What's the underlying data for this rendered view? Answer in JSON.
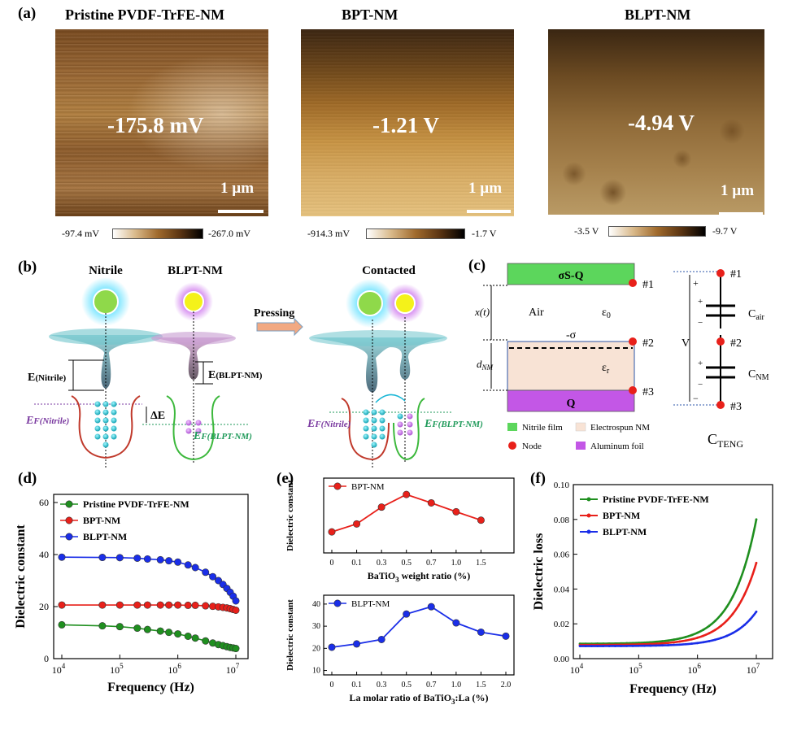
{
  "panel_a": {
    "label": "(a)",
    "images": [
      {
        "title": "Pristine PVDF-TrFE-NM",
        "value": "-175.8 mV",
        "scale": "1 µm",
        "cb_left": "-97.4 mV",
        "cb_right": "-267.0 mV"
      },
      {
        "title": "BPT-NM",
        "value": "-1.21 V",
        "scale": "1 µm",
        "cb_left": "-914.3 mV",
        "cb_right": "-1.7 V"
      },
      {
        "title": "BLPT-NM",
        "value": "-4.94 V",
        "scale": "1 µm",
        "cb_left": "-3.5 V",
        "cb_right": "-9.7 V"
      }
    ]
  },
  "panel_b": {
    "label": "(b)",
    "nitrile": "Nitrile",
    "blpt": "BLPT-NM",
    "pressing": "Pressing",
    "contacted": "Contacted",
    "e_nitrile_main": "E",
    "e_nitrile_sub": "(Nitrile)",
    "e_blpt_main": "E",
    "e_blpt_sub": "(BLPT-NM)",
    "delta_e": "ΔE",
    "ef_main": "E",
    "ef_nitrile_sub": "F(Nitrile)",
    "ef_blpt_sub": "F(BLPT-NM)"
  },
  "panel_c": {
    "label": "(c)",
    "top_layer": "σS-Q",
    "bottom_layer": "Q",
    "air": "Air",
    "eps0_main": "ε",
    "eps0_sub": "0",
    "sigma": "-σ",
    "epsr_main": "ε",
    "epsr_sub": "r",
    "xt": "x(t)",
    "dnm_main": "d",
    "dnm_sub": "NM",
    "node1": "#1",
    "node2": "#2",
    "node3": "#3",
    "legend": [
      "Nitrile film",
      "Electrospun NM",
      "Node",
      "Aluminum foil"
    ],
    "plus": "+",
    "minus": "−",
    "v": "V",
    "cair_main": "C",
    "cair_sub": "air",
    "cnm_main": "C",
    "cnm_sub": "NM",
    "cteng_main": "C",
    "cteng_sub": "TENG"
  },
  "colors": {
    "green": "#1f8f1f",
    "red": "#e8201a",
    "blue": "#1a2ee8",
    "nitrile_film": "#5cd65c",
    "electrospun_nm": "#f8e3d5",
    "aluminum_foil": "#c357e6"
  },
  "chart_data": [
    {
      "id": "d",
      "label": "(d)",
      "type": "line",
      "xlabel": "Frequency (Hz)",
      "ylabel": "Dielectric constant",
      "xscale": "log",
      "xlim": [
        10000,
        10000000
      ],
      "ylim": [
        0,
        60
      ],
      "xticks": [
        "10",
        "10",
        "10",
        "10"
      ],
      "xtick_exp": [
        "4",
        "5",
        "6",
        "7"
      ],
      "yticks": [
        "0",
        "20",
        "40",
        "60"
      ],
      "legend_position": "top-left",
      "x": [
        10000,
        50000,
        100000,
        200000,
        300000,
        500000,
        700000,
        1000000,
        1500000,
        2000000,
        3000000,
        4000000,
        5000000,
        6000000,
        7000000,
        8000000,
        9000000,
        10000000
      ],
      "series": [
        {
          "name": "Pristine PVDF-TrFE-NM",
          "color": "#1f8f1f",
          "values": [
            13.0,
            12.6,
            12.3,
            11.7,
            11.2,
            10.6,
            10.1,
            9.5,
            8.6,
            7.9,
            6.8,
            6.0,
            5.4,
            5.0,
            4.6,
            4.3,
            4.1,
            3.9
          ]
        },
        {
          "name": "BPT-NM",
          "color": "#e8201a",
          "values": [
            20.6,
            20.6,
            20.6,
            20.6,
            20.6,
            20.6,
            20.6,
            20.6,
            20.5,
            20.5,
            20.3,
            20.1,
            19.9,
            19.7,
            19.5,
            19.2,
            18.9,
            18.6
          ]
        },
        {
          "name": "BLPT-NM",
          "color": "#1a2ee8",
          "values": [
            39.0,
            38.9,
            38.8,
            38.6,
            38.3,
            38.0,
            37.6,
            37.1,
            36.0,
            35.0,
            33.2,
            31.5,
            30.0,
            28.5,
            27.0,
            25.5,
            24.0,
            22.2
          ]
        }
      ]
    },
    {
      "id": "e1",
      "label": "(e)",
      "type": "line",
      "xlabel_main": "BaTiO",
      "xlabel_sub": "3",
      "xlabel_rest": " weight ratio (%)",
      "ylabel": "Dielectric constant",
      "categories": [
        "0",
        "0.1",
        "0.3",
        "0.5",
        "0.7",
        "1.0",
        "1.5"
      ],
      "ylim": [
        8,
        24
      ],
      "series": [
        {
          "name": "BPT-NM",
          "color": "#e8201a",
          "values": [
            12.5,
            14.2,
            17.8,
            20.5,
            18.7,
            16.8,
            15.0
          ]
        }
      ]
    },
    {
      "id": "e2",
      "type": "line",
      "xlabel_main": "La molar ratio of BaTiO",
      "xlabel_sub": "3",
      "xlabel_rest": ":La (%)",
      "ylabel": "Dielectric constant",
      "categories": [
        "0",
        "0.1",
        "0.3",
        "0.5",
        "0.7",
        "1.0",
        "1.5",
        "2.0"
      ],
      "yticks": [
        "10",
        "20",
        "30",
        "40"
      ],
      "ylim": [
        8,
        44
      ],
      "series": [
        {
          "name": "BLPT-NM",
          "color": "#1a2ee8",
          "values": [
            20.5,
            22.0,
            24.0,
            35.5,
            38.8,
            31.5,
            27.3,
            25.5
          ]
        }
      ]
    },
    {
      "id": "f",
      "label": "(f)",
      "type": "line",
      "xlabel": "Frequency (Hz)",
      "ylabel": "Dielectric loss",
      "xscale": "log",
      "xlim": [
        10000,
        10000000
      ],
      "ylim": [
        0,
        0.1
      ],
      "xticks": [
        "10",
        "10",
        "10",
        "10"
      ],
      "xtick_exp": [
        "4",
        "5",
        "6",
        "7"
      ],
      "yticks": [
        "0.00",
        "0.02",
        "0.04",
        "0.06",
        "0.08",
        "0.10"
      ],
      "legend_position": "top-left",
      "series": [
        {
          "name": "Pristine PVDF-TrFE-NM",
          "color": "#1f8f1f",
          "end_value": 0.08,
          "base_value": 0.0085
        },
        {
          "name": "BPT-NM",
          "color": "#e8201a",
          "end_value": 0.055,
          "base_value": 0.0078
        },
        {
          "name": "BLPT-NM",
          "color": "#1a2ee8",
          "end_value": 0.027,
          "base_value": 0.0072
        }
      ]
    }
  ]
}
